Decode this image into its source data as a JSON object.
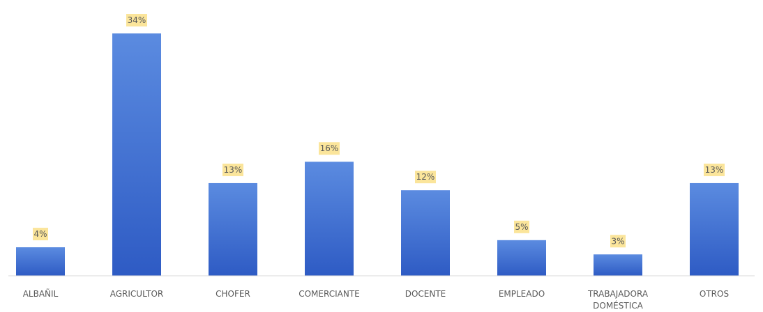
{
  "chart_data": {
    "type": "bar",
    "title": "",
    "xlabel": "",
    "ylabel": "",
    "categories": [
      [
        "ALBAÑIL"
      ],
      [
        "AGRICULTOR"
      ],
      [
        "CHOFER"
      ],
      [
        "COMERCIANTE"
      ],
      [
        "DOCENTE"
      ],
      [
        "EMPLEADO"
      ],
      [
        "TRABAJADORA",
        "DOMÉSTICA"
      ],
      [
        "OTROS"
      ]
    ],
    "values": [
      4,
      34,
      13,
      16,
      12,
      5,
      3,
      13
    ],
    "data_labels": [
      "4%",
      "34%",
      "13%",
      "16%",
      "12%",
      "5%",
      "3%",
      "13%"
    ],
    "unit": "%",
    "ylim": [
      0,
      34
    ],
    "grid": false,
    "legend": "none",
    "colors": {
      "bar_top": "#5B8BE0",
      "bar_bottom": "#2E5BC4",
      "label_bg": "#FBE59B",
      "text": "#595959"
    }
  }
}
